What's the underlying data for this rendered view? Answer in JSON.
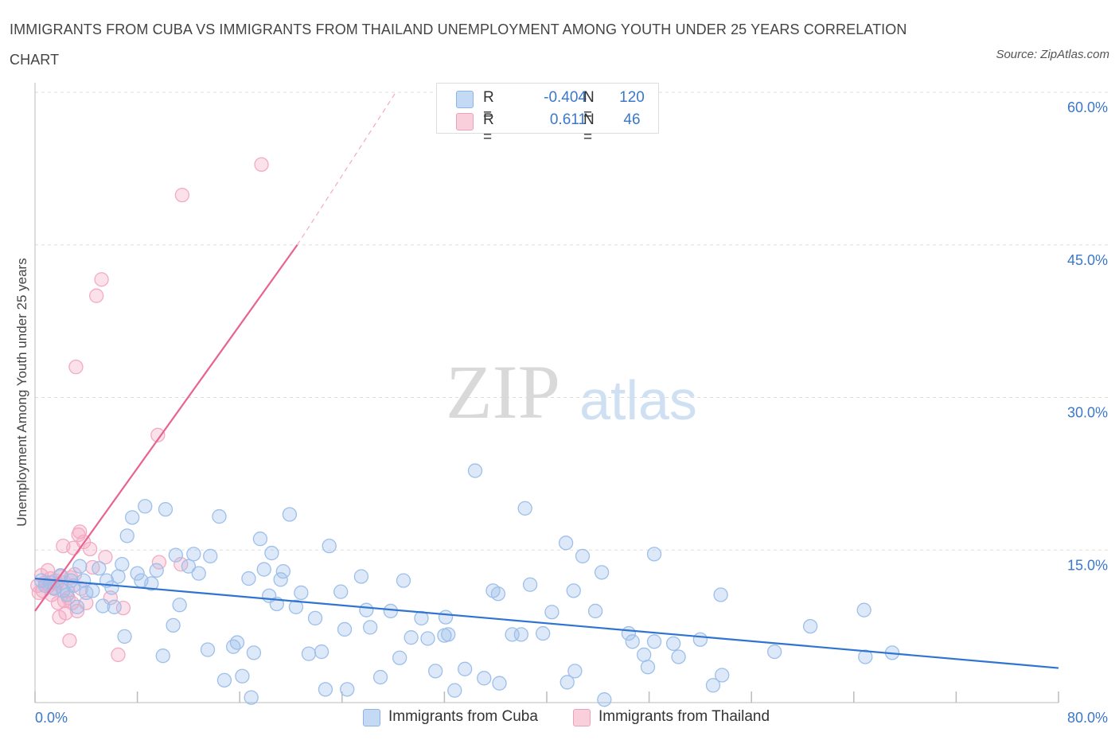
{
  "title": "IMMIGRANTS FROM CUBA VS IMMIGRANTS FROM THAILAND UNEMPLOYMENT AMONG YOUTH UNDER 25 YEARS CORRELATION CHART",
  "source": "Source: ZipAtlas.com",
  "watermark": {
    "zip": "ZIP",
    "atlas": "atlas"
  },
  "colors": {
    "cuba": "#9dbfea",
    "cuba_line": "#2f74d0",
    "thailand": "#f4aac2",
    "thailand_line": "#e8638f",
    "tick_label": "#3a78c9",
    "grid": "#dddddd"
  },
  "legend": {
    "rows": [
      {
        "r_label": "R =",
        "r_value": "-0.404",
        "n_label": "N =",
        "n_value": "120"
      },
      {
        "r_label": "R =",
        "r_value": "0.611",
        "n_label": "N =",
        "n_value": "46"
      }
    ]
  },
  "bottom_legend": {
    "cuba": "Immigrants from Cuba",
    "thailand": "Immigrants from Thailand"
  },
  "chart_data": {
    "type": "scatter",
    "title": "IMMIGRANTS FROM CUBA VS IMMIGRANTS FROM THAILAND UNEMPLOYMENT AMONG YOUTH UNDER 25 YEARS CORRELATION CHART",
    "xlabel": "",
    "ylabel": "Unemployment Among Youth under 25 years",
    "xlim": [
      0,
      80
    ],
    "ylim": [
      0,
      60
    ],
    "x_tick_labels": [
      "0.0%",
      "80.0%"
    ],
    "y_ticks": [
      15,
      30,
      45,
      60
    ],
    "y_tick_labels": [
      "15.0%",
      "30.0%",
      "45.0%",
      "60.0%"
    ],
    "grid": true,
    "series": [
      {
        "name": "Immigrants from Cuba",
        "r": -0.404,
        "n": 120,
        "trend": {
          "x": [
            0,
            80
          ],
          "y": [
            12.2,
            3.4
          ]
        },
        "points": [
          [
            0.5,
            12.0
          ],
          [
            0.8,
            11.5
          ],
          [
            1.2,
            11.8
          ],
          [
            1.5,
            11.2
          ],
          [
            2.0,
            12.5
          ],
          [
            2.2,
            11.0
          ],
          [
            2.5,
            10.6
          ],
          [
            2.8,
            12.0
          ],
          [
            3.0,
            11.5
          ],
          [
            3.3,
            9.4
          ],
          [
            3.5,
            13.4
          ],
          [
            3.8,
            12.0
          ],
          [
            4.0,
            10.8
          ],
          [
            4.5,
            11.0
          ],
          [
            5.0,
            13.2
          ],
          [
            5.3,
            9.5
          ],
          [
            5.6,
            12.0
          ],
          [
            6.0,
            11.3
          ],
          [
            6.2,
            9.4
          ],
          [
            6.5,
            12.4
          ],
          [
            6.8,
            13.6
          ],
          [
            7.0,
            6.5
          ],
          [
            7.2,
            16.4
          ],
          [
            7.6,
            18.2
          ],
          [
            8.0,
            12.7
          ],
          [
            8.3,
            12.0
          ],
          [
            8.6,
            19.3
          ],
          [
            9.1,
            11.7
          ],
          [
            9.5,
            13.0
          ],
          [
            10.0,
            4.6
          ],
          [
            10.2,
            19.0
          ],
          [
            10.8,
            7.6
          ],
          [
            11.0,
            14.5
          ],
          [
            11.3,
            9.6
          ],
          [
            12.0,
            13.4
          ],
          [
            12.4,
            14.6
          ],
          [
            12.8,
            12.7
          ],
          [
            13.5,
            5.2
          ],
          [
            13.7,
            14.4
          ],
          [
            14.4,
            18.3
          ],
          [
            14.8,
            2.2
          ],
          [
            15.5,
            5.5
          ],
          [
            15.8,
            5.9
          ],
          [
            16.2,
            2.6
          ],
          [
            16.7,
            12.2
          ],
          [
            16.9,
            0.5
          ],
          [
            17.1,
            4.9
          ],
          [
            17.6,
            16.1
          ],
          [
            17.9,
            13.1
          ],
          [
            18.3,
            10.5
          ],
          [
            18.5,
            14.7
          ],
          [
            18.9,
            9.7
          ],
          [
            19.2,
            12.1
          ],
          [
            19.4,
            12.9
          ],
          [
            19.9,
            18.5
          ],
          [
            20.4,
            9.4
          ],
          [
            20.8,
            10.8
          ],
          [
            21.4,
            4.8
          ],
          [
            21.9,
            8.3
          ],
          [
            22.4,
            5.0
          ],
          [
            22.7,
            1.3
          ],
          [
            23.0,
            15.4
          ],
          [
            23.9,
            10.9
          ],
          [
            24.2,
            7.2
          ],
          [
            24.4,
            1.3
          ],
          [
            25.5,
            12.4
          ],
          [
            25.9,
            9.1
          ],
          [
            26.2,
            7.4
          ],
          [
            27.0,
            2.5
          ],
          [
            27.8,
            9.0
          ],
          [
            28.5,
            4.4
          ],
          [
            28.8,
            12.0
          ],
          [
            29.4,
            6.4
          ],
          [
            30.2,
            8.3
          ],
          [
            30.7,
            6.3
          ],
          [
            31.3,
            3.1
          ],
          [
            32.0,
            6.6
          ],
          [
            32.1,
            8.4
          ],
          [
            32.3,
            6.7
          ],
          [
            32.8,
            1.2
          ],
          [
            33.6,
            3.3
          ],
          [
            34.4,
            22.8
          ],
          [
            35.1,
            2.4
          ],
          [
            35.8,
            11.0
          ],
          [
            36.2,
            10.7
          ],
          [
            36.3,
            1.9
          ],
          [
            37.3,
            6.7
          ],
          [
            38.0,
            6.7
          ],
          [
            38.3,
            19.1
          ],
          [
            38.7,
            11.6
          ],
          [
            39.7,
            6.8
          ],
          [
            40.4,
            8.9
          ],
          [
            41.5,
            15.7
          ],
          [
            41.6,
            2.0
          ],
          [
            42.1,
            11.0
          ],
          [
            42.2,
            3.1
          ],
          [
            42.8,
            14.4
          ],
          [
            43.8,
            9.0
          ],
          [
            44.3,
            12.8
          ],
          [
            44.5,
            0.3
          ],
          [
            46.4,
            6.8
          ],
          [
            46.7,
            6.0
          ],
          [
            47.6,
            4.7
          ],
          [
            47.9,
            3.5
          ],
          [
            48.4,
            6.0
          ],
          [
            48.4,
            14.6
          ],
          [
            49.9,
            5.8
          ],
          [
            50.3,
            4.5
          ],
          [
            52.0,
            6.2
          ],
          [
            53.0,
            1.7
          ],
          [
            53.6,
            10.6
          ],
          [
            53.7,
            2.7
          ],
          [
            57.8,
            5.0
          ],
          [
            60.6,
            7.5
          ],
          [
            64.9,
            4.5
          ],
          [
            64.8,
            9.1
          ],
          [
            67.0,
            4.9
          ]
        ]
      },
      {
        "name": "Immigrants from Thailand",
        "r": 0.611,
        "n": 46,
        "trend": {
          "x": [
            0,
            20.5
          ],
          "y": [
            9.0,
            45.0
          ]
        },
        "trend_dashed": {
          "x": [
            20.5,
            28.2
          ],
          "y": [
            45.0,
            60.0
          ]
        },
        "points": [
          [
            0.2,
            11.5
          ],
          [
            0.3,
            10.8
          ],
          [
            0.5,
            12.5
          ],
          [
            0.6,
            11.0
          ],
          [
            0.8,
            11.8
          ],
          [
            1.0,
            13.0
          ],
          [
            1.1,
            11.5
          ],
          [
            1.2,
            12.2
          ],
          [
            1.3,
            10.6
          ],
          [
            1.5,
            11.3
          ],
          [
            1.6,
            12.0
          ],
          [
            1.7,
            11.7
          ],
          [
            1.8,
            9.8
          ],
          [
            1.9,
            8.4
          ],
          [
            2.0,
            12.4
          ],
          [
            2.1,
            11.8
          ],
          [
            2.2,
            15.4
          ],
          [
            2.3,
            10.0
          ],
          [
            2.4,
            8.8
          ],
          [
            2.5,
            11.0
          ],
          [
            2.6,
            10.3
          ],
          [
            2.7,
            6.1
          ],
          [
            2.8,
            12.3
          ],
          [
            2.9,
            9.8
          ],
          [
            3.0,
            15.2
          ],
          [
            3.1,
            12.6
          ],
          [
            3.2,
            33.0
          ],
          [
            3.3,
            9.0
          ],
          [
            3.4,
            16.5
          ],
          [
            3.5,
            16.8
          ],
          [
            3.6,
            11.2
          ],
          [
            3.8,
            15.8
          ],
          [
            4.0,
            9.8
          ],
          [
            4.3,
            15.1
          ],
          [
            4.5,
            13.3
          ],
          [
            4.8,
            40.0
          ],
          [
            5.2,
            41.6
          ],
          [
            5.5,
            14.3
          ],
          [
            5.9,
            10.3
          ],
          [
            6.5,
            4.7
          ],
          [
            6.9,
            9.3
          ],
          [
            9.6,
            26.3
          ],
          [
            9.7,
            13.8
          ],
          [
            11.5,
            49.9
          ],
          [
            11.4,
            13.6
          ],
          [
            17.7,
            52.9
          ]
        ]
      }
    ]
  }
}
